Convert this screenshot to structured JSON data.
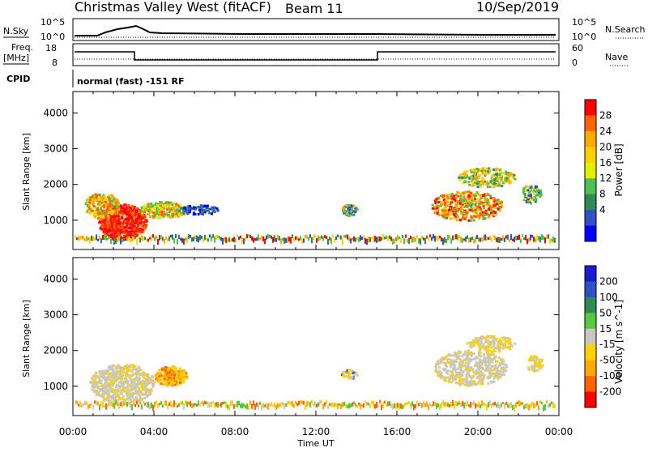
{
  "header": {
    "title": "Christmas Valley West (fitACF)",
    "beam": "Beam 11",
    "date": "10/Sep/2019"
  },
  "panels": {
    "nsky_label": "N.Sky",
    "nsearch_label": "N.Search",
    "nsky_ticks": [
      "10^5",
      "10^0"
    ],
    "nsearch_ticks": [
      "10^5",
      "10^0"
    ],
    "freq_label_1": "Freq.",
    "freq_label_2": "[MHz]",
    "freq_ticks": [
      "18",
      "8"
    ],
    "nave_label": "Nave",
    "nave_ticks": [
      "60",
      "0"
    ],
    "cpid_label": "CPID",
    "cpid_text": "normal (fast) -151 RF"
  },
  "chart_data": [
    {
      "type": "heatmap",
      "name": "power",
      "ylabel": "Slant Range [km]",
      "xlabel": "",
      "yticks": [
        1000,
        2000,
        3000,
        4000
      ],
      "ylim": [
        180,
        4600
      ],
      "colorbar_label": "Power [dB]",
      "colorbar_ticks": [
        28,
        24,
        20,
        16,
        12,
        8,
        4
      ],
      "colors": [
        "#ff0000",
        "#ff6400",
        "#ffaa00",
        "#ffd200",
        "#e0f000",
        "#50c050",
        "#2e8b57",
        "#3050c8",
        "#0000ff"
      ]
    },
    {
      "type": "heatmap",
      "name": "velocity",
      "ylabel": "Slant Range [km]",
      "xlabel": "Time UT",
      "yticks": [
        1000,
        2000,
        3000,
        4000
      ],
      "ylim": [
        180,
        4600
      ],
      "xticks": [
        "00:00",
        "04:00",
        "08:00",
        "12:00",
        "16:00",
        "20:00",
        "00:00"
      ],
      "colorbar_label": "Velocity [m s^-1]",
      "colorbar_ticks": [
        "200",
        "100",
        "50",
        "15",
        "-15",
        "-50",
        "-100",
        "-200"
      ],
      "colors": [
        "#1b1bd0",
        "#3050c8",
        "#2e8b57",
        "#55c840",
        "#c8c8c0",
        "#ffd200",
        "#ffaa00",
        "#ff6400",
        "#ff0000"
      ]
    }
  ]
}
